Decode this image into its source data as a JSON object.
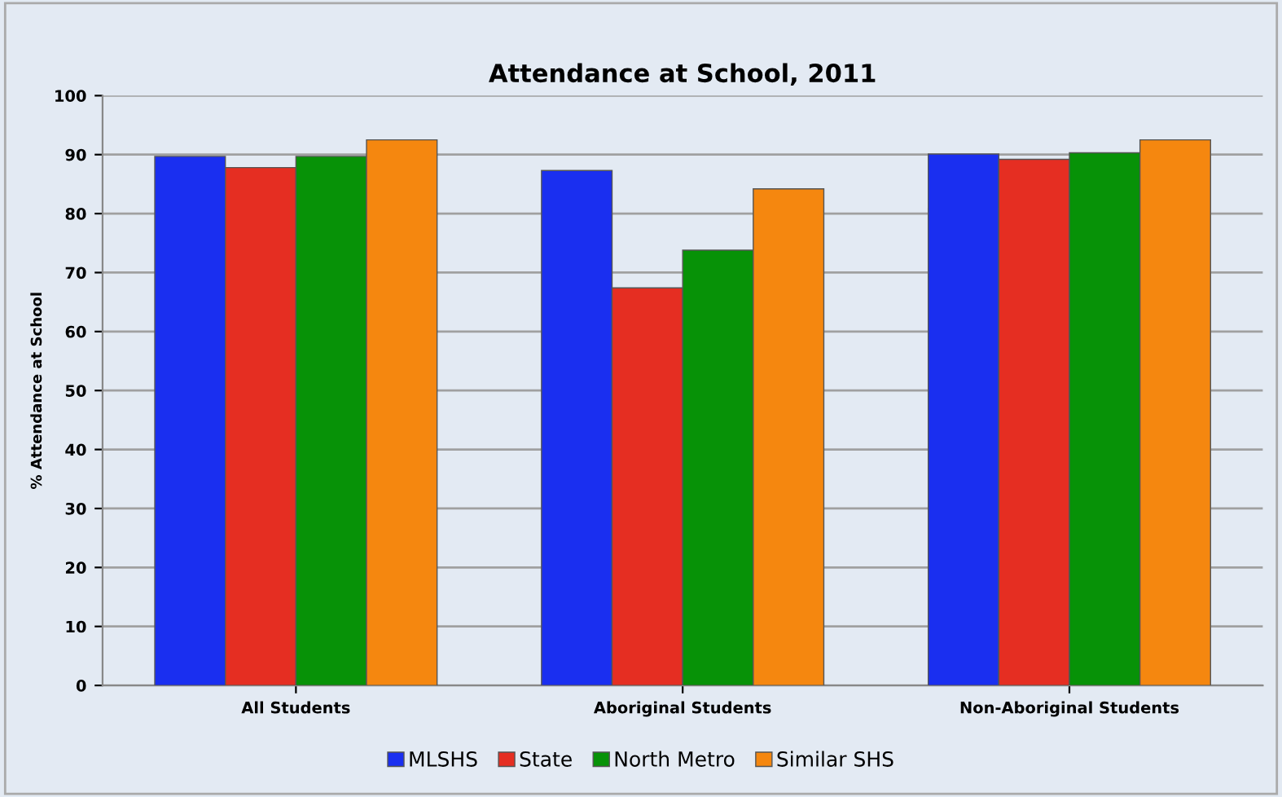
{
  "chart_data": {
    "type": "bar",
    "title": "Attendance at School, 2011",
    "ylabel": "% Attendance at School",
    "categories": [
      "All Students",
      "Aboriginal Students",
      "Non-Aboriginal Students"
    ],
    "series": [
      {
        "name": "MLSHS",
        "color": "#1a2ff0",
        "values": [
          89.7,
          87.3,
          90.1
        ]
      },
      {
        "name": "State",
        "color": "#e52e22",
        "values": [
          87.8,
          67.4,
          89.2
        ]
      },
      {
        "name": "North Metro",
        "color": "#079207",
        "values": [
          89.7,
          73.8,
          90.3
        ]
      },
      {
        "name": "Similar SHS",
        "color": "#f5870f",
        "values": [
          92.5,
          84.2,
          92.5
        ]
      }
    ],
    "ylim": [
      0,
      100
    ],
    "yticks": [
      0,
      10,
      20,
      30,
      40,
      50,
      60,
      70,
      80,
      90,
      100
    ],
    "grid": "y",
    "legend": "bottom"
  }
}
